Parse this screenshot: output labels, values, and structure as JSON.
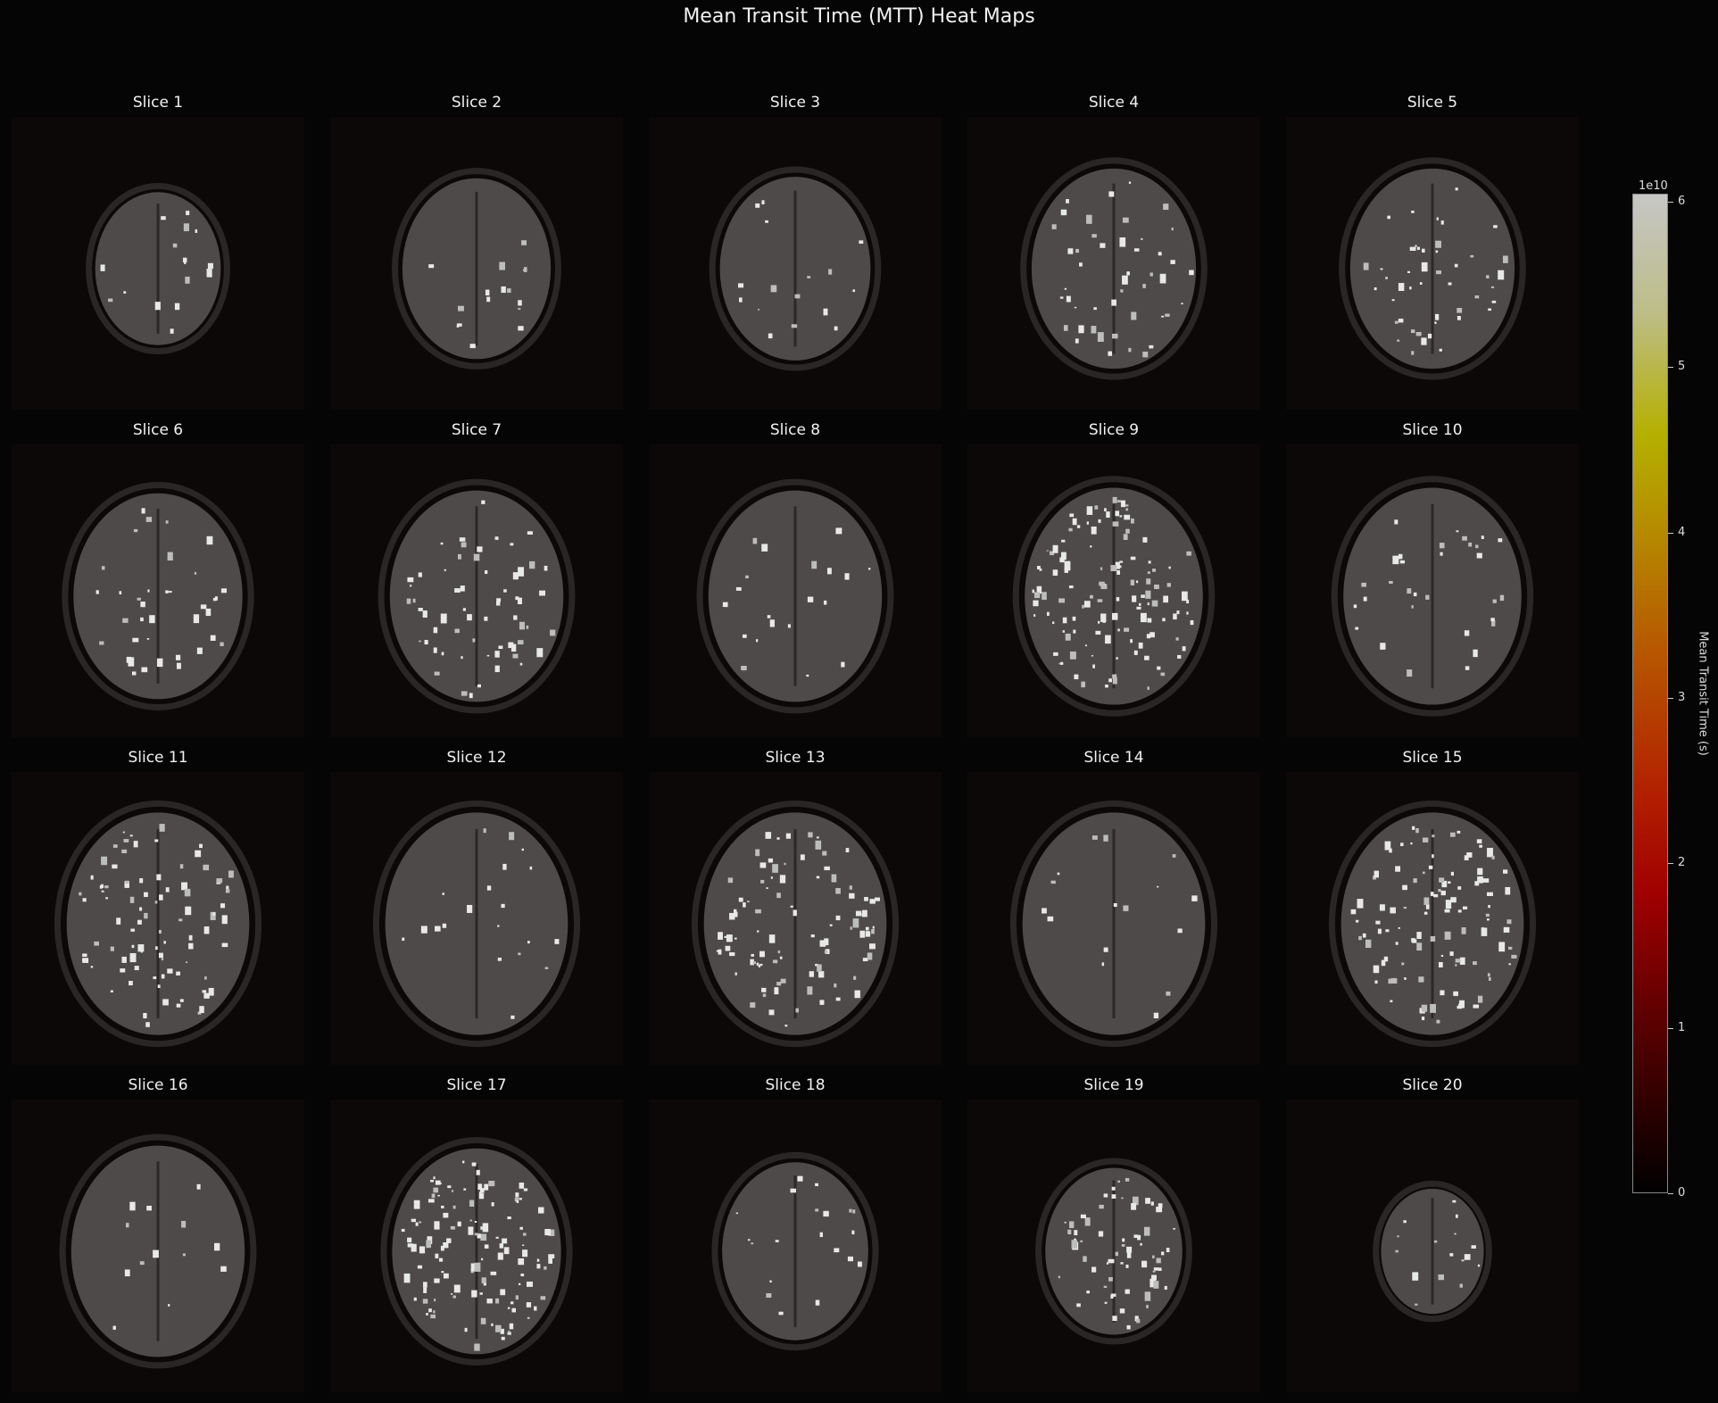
{
  "title": "Mean Transit Time (MTT) Heat Maps",
  "chart_data": {
    "type": "heatmap",
    "grid": {
      "rows": 4,
      "cols": 5
    },
    "panels": [
      {
        "title": "Slice 1",
        "hot": 0.05,
        "size": 0.55
      },
      {
        "title": "Slice 2",
        "hot": 0.05,
        "size": 0.65
      },
      {
        "title": "Slice 3",
        "hot": 0.05,
        "size": 0.66
      },
      {
        "title": "Slice 4",
        "hot": 0.25,
        "size": 0.72
      },
      {
        "title": "Slice 5",
        "hot": 0.25,
        "size": 0.72
      },
      {
        "title": "Slice 6",
        "hot": 0.2,
        "size": 0.74
      },
      {
        "title": "Slice 7",
        "hot": 0.35,
        "size": 0.76
      },
      {
        "title": "Slice 8",
        "hot": 0.08,
        "size": 0.76
      },
      {
        "title": "Slice 9",
        "hot": 0.8,
        "size": 0.78
      },
      {
        "title": "Slice 10",
        "hot": 0.15,
        "size": 0.78
      },
      {
        "title": "Slice 11",
        "hot": 0.55,
        "size": 0.8
      },
      {
        "title": "Slice 12",
        "hot": 0.08,
        "size": 0.8
      },
      {
        "title": "Slice 13",
        "hot": 0.6,
        "size": 0.8
      },
      {
        "title": "Slice 14",
        "hot": 0.05,
        "size": 0.8
      },
      {
        "title": "Slice 15",
        "hot": 0.7,
        "size": 0.8
      },
      {
        "title": "Slice 16",
        "hot": 0.03,
        "size": 0.76
      },
      {
        "title": "Slice 17",
        "hot": 0.8,
        "size": 0.74
      },
      {
        "title": "Slice 18",
        "hot": 0.08,
        "size": 0.64
      },
      {
        "title": "Slice 19",
        "hot": 0.4,
        "size": 0.6
      },
      {
        "title": "Slice 20",
        "hot": 0.05,
        "size": 0.45
      }
    ],
    "colorbar": {
      "label": "Mean Transit Time (s)",
      "exponent": "1e10",
      "ticks": [
        "0",
        "1",
        "2",
        "3",
        "4",
        "5",
        "6"
      ],
      "range": [
        0,
        6.05
      ],
      "colormap": [
        "#000000",
        "#a00000",
        "#b65a00",
        "#b4b000",
        "#c6c6c6"
      ]
    }
  }
}
